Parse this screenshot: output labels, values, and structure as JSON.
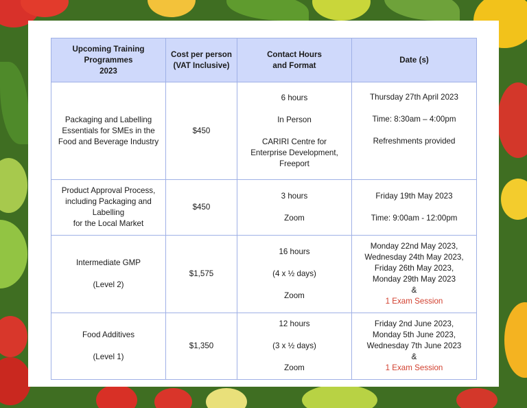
{
  "colors": {
    "header_bg": "#cfd9fb",
    "border": "#9fb0e6",
    "exam_red": "#d2402f"
  },
  "table": {
    "headers": [
      [
        "Upcoming Training",
        "Programmes",
        "2023"
      ],
      [
        "Cost per person",
        "(VAT Inclusive)"
      ],
      [
        "Contact Hours",
        "and Format"
      ],
      [
        "Date (s)"
      ]
    ],
    "rows": [
      {
        "programme": [
          "Packaging and Labelling",
          "Essentials for SMEs in the",
          "Food and Beverage Industry"
        ],
        "cost": "$450",
        "hours": "6 hours",
        "format": "In Person",
        "venue": [
          "CARIRI Centre for",
          "Enterprise Development,",
          "Freeport"
        ],
        "date": "Thursday 27th April 2023",
        "time": "Time: 8:30am – 4:00pm",
        "note": "Refreshments provided"
      },
      {
        "programme": [
          "Product Approval Process,",
          "including Packaging and",
          "Labelling",
          "for the Local Market"
        ],
        "cost": "$450",
        "hours": "3 hours",
        "format": "Zoom",
        "date": "Friday 19th May 2023",
        "time": "Time: 9:00am - 12:00pm"
      },
      {
        "programme": "Intermediate GMP",
        "level": "(Level 2)",
        "cost": "$1,575",
        "hours": "16 hours",
        "days": "(4 x ½ days)",
        "format": "Zoom",
        "dates": [
          "Monday 22nd May 2023,",
          "Wednesday 24th May 2023,",
          "Friday 26th May 2023,",
          "Monday 29th May 2023",
          "&"
        ],
        "exam": "1 Exam Session"
      },
      {
        "programme": "Food Additives",
        "level": "(Level 1)",
        "cost": "$1,350",
        "hours": "12 hours",
        "days": "(3 x ½ days)",
        "format": "Zoom",
        "dates": [
          "Friday 2nd June 2023,",
          "Monday 5th June 2023,",
          "Wednesday 7th June 2023",
          "&"
        ],
        "exam": "1 Exam Session"
      }
    ]
  }
}
